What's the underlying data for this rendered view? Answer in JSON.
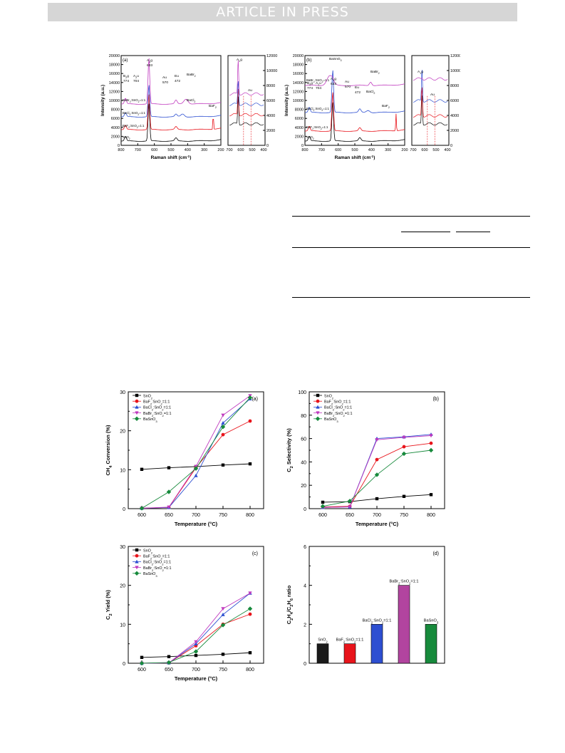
{
  "header": {
    "banner": "ARTICLE IN PRESS"
  },
  "raman": {
    "panel_a": {
      "label": "(a)",
      "xlabel": "Raman shift (cm",
      "xlabel_sup": "-1",
      "xlabel_end": ")",
      "ylabel": "Intensity (a.u.)",
      "x_ticks": [
        "800",
        "700",
        "600",
        "500",
        "400",
        "300",
        "200"
      ],
      "y_ticks": [
        "0",
        "2000",
        "4000",
        "6000",
        "8000",
        "10000",
        "12000",
        "14000",
        "16000",
        "18000",
        "20000"
      ],
      "inset_y_ticks": [
        "0",
        "2000",
        "4000",
        "6000",
        "8000",
        "10000",
        "12000"
      ],
      "inset_x_ticks": [
        "700",
        "600",
        "500",
        "400"
      ],
      "traces": [
        "SnO2",
        "BaF2:SnO2=1:1",
        "BaCl2:SnO2=1:1",
        "BaBr2:SnO2=1:1"
      ],
      "annotations": [
        "B2g",
        "774",
        "A2u",
        "704",
        "A1g",
        "633",
        "Au",
        "570",
        "Eu",
        "472",
        "BaBr2",
        "BaCl2",
        "BaF2",
        "A1g",
        "Au"
      ]
    },
    "panel_b": {
      "label": "(b)",
      "xlabel": "Raman shift (cm",
      "xlabel_sup": "-1",
      "xlabel_end": ")",
      "ylabel": "Intensity (a.u.)",
      "x_ticks": [
        "800",
        "700",
        "600",
        "500",
        "400",
        "300",
        "200"
      ],
      "y_ticks": [
        "0",
        "2000",
        "4000",
        "6000",
        "8000",
        "10000",
        "12000",
        "14000",
        "16000",
        "18000",
        "20000"
      ],
      "inset_y_ticks": [
        "0",
        "2000",
        "4000",
        "6000",
        "8000",
        "10000",
        "12000"
      ],
      "inset_x_ticks": [
        "700",
        "600",
        "500",
        "400"
      ],
      "traces": [
        "SnO2",
        "BaF2:SnO2=1:1",
        "BaCl2:SnO2=1:1",
        "BaBr2:SnO2=1:1"
      ],
      "annotations": [
        "BaSnO3",
        "BaBr2",
        "B2g",
        "774",
        "A2u",
        "704",
        "A1g",
        "633",
        "Au",
        "570",
        "Eu",
        "472",
        "BaCl2",
        "BaF2",
        "A1g",
        "Au"
      ]
    },
    "colors": {
      "SnO2": "#000000",
      "BaF2:SnO2=1:1": "#e8141b",
      "BaCl2:SnO2=1:1": "#2d4fd1",
      "BaBr2:SnO2=1:1": "#c03bbf"
    }
  },
  "chart_data": [
    {
      "type": "line",
      "label": "(a)",
      "xlabel": "Temperature (°C)",
      "ylabel": "CH4 Conversion (%)",
      "x": [
        600,
        650,
        700,
        750,
        800
      ],
      "xlim": [
        575,
        825
      ],
      "ylim": [
        0,
        30
      ],
      "y_ticks": [
        0,
        10,
        20,
        30
      ],
      "series": [
        {
          "name": "SnO2",
          "marker": "square",
          "color": "#000000",
          "values": [
            10.1,
            10.5,
            10.8,
            11.2,
            11.5
          ]
        },
        {
          "name": "BaF2:SnO2=1:1",
          "marker": "circle",
          "color": "#e8141b",
          "values": [
            0.1,
            0.3,
            10.5,
            19.0,
            22.5
          ]
        },
        {
          "name": "BaCl2:SnO2=1:1",
          "marker": "triangle-up",
          "color": "#2d4fd1",
          "values": [
            0.1,
            0.3,
            8.5,
            22.0,
            28.2
          ]
        },
        {
          "name": "BaBr2:SnO2=1:1",
          "marker": "triangle-down",
          "color": "#c03bbf",
          "values": [
            0.1,
            0.4,
            10.8,
            24.0,
            29.0
          ]
        },
        {
          "name": "BaSnO3",
          "marker": "diamond",
          "color": "#178a3c",
          "values": [
            0.1,
            4.3,
            10.3,
            21.0,
            28.5
          ]
        }
      ]
    },
    {
      "type": "line",
      "label": "(b)",
      "xlabel": "Temperature (°C)",
      "ylabel": "C2 Selectivity (%)",
      "x": [
        600,
        650,
        700,
        750,
        800
      ],
      "xlim": [
        575,
        825
      ],
      "ylim": [
        0,
        100
      ],
      "y_ticks": [
        0,
        20,
        40,
        60,
        80,
        100
      ],
      "series": [
        {
          "name": "SnO2",
          "marker": "square",
          "color": "#000000",
          "values": [
            5.5,
            6.0,
            8.5,
            10.5,
            12.0
          ]
        },
        {
          "name": "BaF2:SnO2=1:1",
          "marker": "circle",
          "color": "#e8141b",
          "values": [
            1.5,
            2.0,
            42.0,
            53.0,
            56.0
          ]
        },
        {
          "name": "BaCl2:SnO2=1:1",
          "marker": "triangle-up",
          "color": "#2d4fd1",
          "values": [
            1.0,
            1.5,
            60.0,
            61.5,
            63.5
          ]
        },
        {
          "name": "BaBr2:SnO2=1:1",
          "marker": "triangle-down",
          "color": "#c03bbf",
          "values": [
            1.0,
            1.5,
            59.0,
            61.0,
            62.5
          ]
        },
        {
          "name": "BaSnO3",
          "marker": "diamond",
          "color": "#178a3c",
          "values": [
            2.0,
            6.5,
            29.0,
            47.0,
            50.0
          ]
        }
      ]
    },
    {
      "type": "line",
      "label": "(c)",
      "xlabel": "Temperature (°C)",
      "ylabel": "C2 Yield (%)",
      "x": [
        600,
        650,
        700,
        750,
        800
      ],
      "xlim": [
        575,
        825
      ],
      "ylim": [
        0,
        30
      ],
      "y_ticks": [
        0,
        10,
        20,
        30
      ],
      "series": [
        {
          "name": "SnO2",
          "marker": "square",
          "color": "#000000",
          "values": [
            1.5,
            1.7,
            2.0,
            2.3,
            2.7
          ]
        },
        {
          "name": "BaF2:SnO2=1:1",
          "marker": "circle",
          "color": "#e8141b",
          "values": [
            0.0,
            0.1,
            4.5,
            10.0,
            12.6
          ]
        },
        {
          "name": "BaCl2:SnO2=1:1",
          "marker": "triangle-up",
          "color": "#2d4fd1",
          "values": [
            0.0,
            0.1,
            5.0,
            12.5,
            18.0
          ]
        },
        {
          "name": "BaBr2:SnO2=1:1",
          "marker": "triangle-down",
          "color": "#c03bbf",
          "values": [
            0.0,
            0.1,
            5.5,
            14.0,
            18.0
          ]
        },
        {
          "name": "BaSnO3",
          "marker": "diamond",
          "color": "#178a3c",
          "values": [
            0.0,
            0.2,
            3.0,
            9.8,
            14.0
          ]
        }
      ]
    },
    {
      "type": "bar",
      "label": "(d)",
      "ylabel": "C2H4/C2H6 ratio",
      "ylim": [
        0,
        6
      ],
      "y_ticks": [
        0,
        2,
        4,
        6
      ],
      "categories": [
        "SnO2",
        "BaF2:SnO2=1:1",
        "BaCl2:SnO2=1:1",
        "BaBr2:SnO2=1:1",
        "BaSnO3"
      ],
      "values": [
        1.0,
        1.0,
        2.0,
        4.0,
        2.0
      ],
      "colors": [
        "#1a1a1a",
        "#e8141b",
        "#2d4fd1",
        "#b2449f",
        "#178a3c"
      ]
    }
  ]
}
